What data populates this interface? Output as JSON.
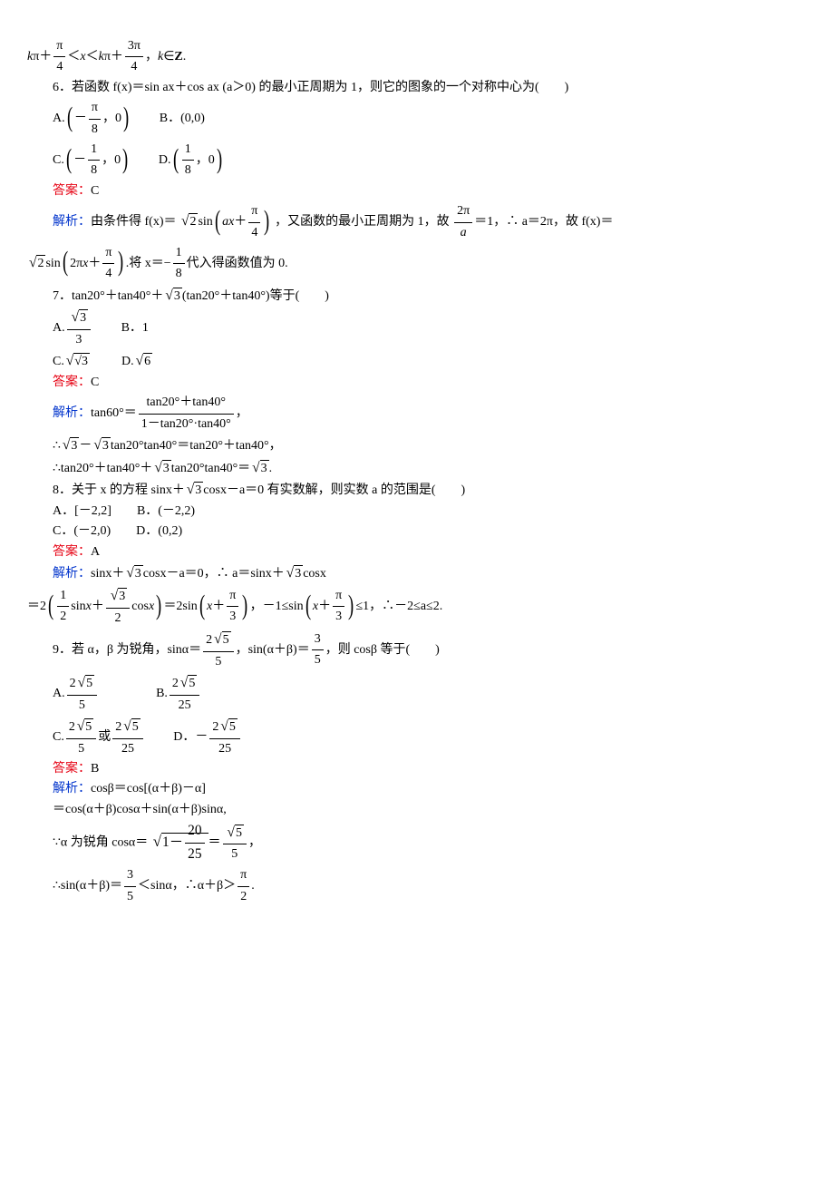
{
  "colors": {
    "answer": "#e60012",
    "analysis": "#0033cc",
    "text": "#000000",
    "bg": "#ffffff"
  },
  "fontsize_pt": 10.5,
  "topline": "kπ＋(π/4)＜x＜kπ＋(3π/4)，k∈Z.",
  "q6": {
    "stem": "6．若函数 f(x)＝sin ax＋cos ax (a＞0) 的最小正周期为 1，则它的图象的一个对称中心为(　　)",
    "optA": "(−π/8，0)",
    "optB": "B．(0,0)",
    "optC": "(−1/8，0)",
    "optD": "(1/8，0)",
    "answer_label": "答案：",
    "answer": "C",
    "analysis_label": "解析：",
    "analysis1_a": "由条件得 f(x)＝",
    "analysis1_b": "，又函数的最小正周期为 1，故 ",
    "analysis1_c": "＝1，∴ a＝2π，故 f(x)＝",
    "twopi_over_a_n": "2π",
    "twopi_over_a_d": "a",
    "sqrt2_sin": "√2 sin(ax＋π/4)",
    "analysis2_a": ".将 x＝−",
    "analysis2_b": "代入得函数值为 0.",
    "one_eighth_n": "1",
    "one_eighth_d": "8"
  },
  "q7": {
    "stem": "7．tan20°＋tan40°＋√3(tan20°＋tan40°) 等于(　　)",
    "optA_n": "√3",
    "optA_d": "3",
    "optB": "B．1",
    "optC": "√3",
    "optD": "√6",
    "answer_label": "答案：",
    "answer": "C",
    "analysis_label": "解析：",
    "t1_a": "tan60°＝",
    "t1_num": "tan20°＋tan40°",
    "t1_den": "1－tan20°·tan40°",
    "t1_tail": "，",
    "t2": "∴√3－√3 tan20°tan40°＝tan20°＋tan40°，",
    "t3": "∴tan20°＋tan40°＋√3 tan20°tan40°＝√3."
  },
  "q8": {
    "stem_a": "8．关于 x 的方程 sinx＋",
    "stem_b": "cosx－a＝0 有实数解，则实数 a 的范围是(　　)",
    "sqrt3": "3",
    "optA": "A．[－2,2]",
    "optB": "B．(－2,2)",
    "optC": "C．(－2,0)",
    "optD": "D．(0,2)",
    "answer_label": "答案：",
    "answer": "A",
    "analysis_label": "解析：",
    "s1_a": "sinx＋",
    "s1_b": "cosx－a＝0，∴ a＝sinx＋",
    "s1_c": "cosx",
    "s2_a": "＝2",
    "s2_b": "＝2sin",
    "s2_c": "，－1≤sin",
    "s2_d": "≤1，∴－2≤a≤2.",
    "half_n": "1",
    "half_d": "2",
    "sqrt3_2_n": "√3",
    "sqrt3_2_d": "2",
    "pi3_n": "π",
    "pi3_d": "3"
  },
  "q9": {
    "stem_a": "9．若 α，β 为锐角，sinα＝",
    "stem_b": "，sin(α＋β)＝",
    "stem_c": "，则 cosβ 等于(　　)",
    "v1_n": "2√5",
    "v1_d": "5",
    "v2_n": "3",
    "v2_d": "5",
    "optA_n": "2√5",
    "optA_d": "5",
    "optB_n": "2√5",
    "optB_d": "25",
    "optC_a_n": "2√5",
    "optC_a_d": "5",
    "optC_or": "或",
    "optC_b_n": "2√5",
    "optC_b_d": "25",
    "optD_pre": "D．－",
    "optD_n": "2√5",
    "optD_d": "25",
    "answer_label": "答案：",
    "answer": "B",
    "analysis_label": "解析：",
    "r1": "cosβ＝cos[(α＋β)－α]",
    "r2": "＝cos(α＋β)cosα＋sin(α＋β)sinα,",
    "r3_a": "∵α 为锐角 cosα＝",
    "r3_in_a_n": "20",
    "r3_in_a_d": "25",
    "r3_eq_n": "√5",
    "r3_eq_d": "5",
    "r3_tail": "，",
    "r4_a": "∴sin(α＋β)＝",
    "r4_frac_n": "3",
    "r4_frac_d": "5",
    "r4_b": "＜sinα，∴α＋β＞",
    "r4_pi2_n": "π",
    "r4_pi2_d": "2",
    "r4_tail": "."
  }
}
